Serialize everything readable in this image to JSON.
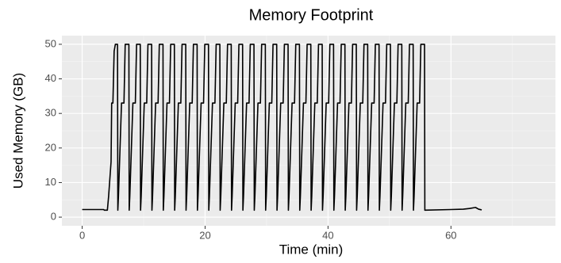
{
  "chart_data": {
    "type": "line",
    "title": "Memory Footprint",
    "xlabel": "Time (min)",
    "ylabel": "Used Memory (GB)",
    "xlim": [
      -3.3,
      77
    ],
    "ylim": [
      -2.5,
      52.5
    ],
    "xticks": [
      0,
      20,
      40,
      60
    ],
    "yticks": [
      0,
      10,
      20,
      30,
      40,
      50
    ],
    "grid": true,
    "minor_grid": true,
    "series": [
      {
        "name": "Used Memory",
        "color": "#000000",
        "x": [
          0,
          3.5,
          3.6,
          4.1,
          4.3,
          4.7,
          4.8,
          5.0,
          5.2,
          5.4,
          5.75,
          5.8,
          5.9,
          6.4,
          6.8,
          7.0,
          7.6,
          7.65,
          7.75,
          8.25,
          8.65,
          8.85,
          9.45,
          9.5,
          9.6,
          10.1,
          10.5,
          10.7,
          11.3,
          11.35,
          11.45,
          11.95,
          12.35,
          12.55,
          13.15,
          13.2,
          13.3,
          13.8,
          14.2,
          14.4,
          15.0,
          15.05,
          15.15,
          15.65,
          16.05,
          16.25,
          16.85,
          16.9,
          17.0,
          17.5,
          17.9,
          18.1,
          18.7,
          18.75,
          18.85,
          19.35,
          19.75,
          19.95,
          20.55,
          20.6,
          20.7,
          21.2,
          21.6,
          21.8,
          22.4,
          22.45,
          22.55,
          23.05,
          23.45,
          23.65,
          24.25,
          24.3,
          24.4,
          24.9,
          25.3,
          25.5,
          26.1,
          26.15,
          26.25,
          26.75,
          27.15,
          27.35,
          27.95,
          28.0,
          28.1,
          28.6,
          29.0,
          29.2,
          29.8,
          29.85,
          29.95,
          30.45,
          30.85,
          31.05,
          31.65,
          31.7,
          31.8,
          32.3,
          32.7,
          32.9,
          33.5,
          33.55,
          33.65,
          34.15,
          34.55,
          34.75,
          35.35,
          35.4,
          35.5,
          36.0,
          36.4,
          36.6,
          37.2,
          37.25,
          37.35,
          37.85,
          38.25,
          38.45,
          39.05,
          39.1,
          39.2,
          39.7,
          40.1,
          40.3,
          40.9,
          40.95,
          41.05,
          41.55,
          41.95,
          42.15,
          42.75,
          42.8,
          42.9,
          43.4,
          43.8,
          44.0,
          44.6,
          44.65,
          44.75,
          45.25,
          45.65,
          45.85,
          46.45,
          46.5,
          46.6,
          47.1,
          47.5,
          47.7,
          48.3,
          48.35,
          48.45,
          48.95,
          49.35,
          49.55,
          50.15,
          50.2,
          50.3,
          50.8,
          51.2,
          51.4,
          52.0,
          52.05,
          52.15,
          52.65,
          53.05,
          53.25,
          53.85,
          53.9,
          54.0,
          54.5,
          54.9,
          55.1,
          55.7,
          55.75,
          60,
          62,
          63,
          64,
          64.5,
          65
        ],
        "values": [
          2.2,
          2.2,
          2.0,
          2.0,
          6,
          16,
          33,
          33,
          48,
          50,
          50,
          2,
          6,
          33,
          33,
          50,
          50,
          2,
          6,
          33,
          33,
          50,
          50,
          2,
          6,
          33,
          33,
          50,
          50,
          2,
          6,
          33,
          33,
          50,
          50,
          2,
          6,
          33,
          33,
          50,
          50,
          2,
          6,
          33,
          33,
          50,
          50,
          2,
          6,
          33,
          33,
          50,
          50,
          2,
          6,
          33,
          33,
          50,
          50,
          2,
          6,
          33,
          33,
          50,
          50,
          2,
          6,
          33,
          33,
          50,
          50,
          2,
          6,
          33,
          33,
          50,
          50,
          2,
          6,
          33,
          33,
          50,
          50,
          2,
          6,
          33,
          33,
          50,
          50,
          2,
          6,
          33,
          33,
          50,
          50,
          2,
          6,
          33,
          33,
          50,
          50,
          2,
          6,
          33,
          33,
          50,
          50,
          2,
          6,
          33,
          33,
          50,
          50,
          2,
          6,
          33,
          33,
          50,
          50,
          2,
          6,
          33,
          33,
          50,
          50,
          2,
          6,
          33,
          33,
          50,
          50,
          2,
          6,
          33,
          33,
          50,
          50,
          2,
          6,
          33,
          33,
          50,
          50,
          2,
          6,
          33,
          33,
          50,
          50,
          2,
          6,
          33,
          33,
          50,
          50,
          2,
          6,
          33,
          33,
          50,
          50,
          2,
          6,
          33,
          33,
          50,
          50,
          2,
          6,
          33,
          33,
          50,
          50,
          2,
          2.2,
          2.3,
          2.5,
          2.8,
          2.3,
          2.1
        ]
      }
    ]
  }
}
